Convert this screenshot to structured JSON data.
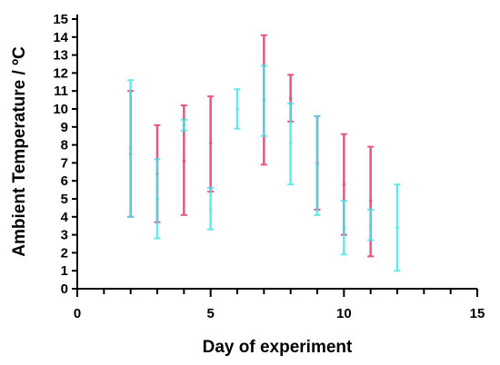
{
  "chart_data": {
    "type": "scatter",
    "xlabel": "Day of experiment",
    "ylabel": "Ambient Temperature / ºC",
    "xlim": [
      0,
      15
    ],
    "ylim": [
      0,
      15
    ],
    "x_ticks": [
      "0",
      "5",
      "10",
      "15"
    ],
    "y_ticks": [
      "0",
      "1",
      "2",
      "3",
      "4",
      "5",
      "6",
      "7",
      "8",
      "9",
      "10",
      "11",
      "12",
      "13",
      "14",
      "15"
    ],
    "grid": false,
    "legend": "none",
    "series": [
      {
        "color": "#e0306e",
        "points": [
          {
            "x": 2,
            "low": 4.0,
            "mid": 7.5,
            "high": 11.0
          },
          {
            "x": 3,
            "low": 3.7,
            "mid": 6.4,
            "high": 9.1
          },
          {
            "x": 4,
            "low": 4.1,
            "mid": 7.1,
            "high": 10.2
          },
          {
            "x": 5,
            "low": 5.4,
            "mid": 8.1,
            "high": 10.7
          },
          {
            "x": 7,
            "low": 6.9,
            "mid": 10.5,
            "high": 14.1
          },
          {
            "x": 8,
            "low": 9.3,
            "mid": 10.6,
            "high": 11.9
          },
          {
            "x": 9,
            "low": 4.4,
            "mid": 7.0,
            "high": 9.6
          },
          {
            "x": 10,
            "low": 3.0,
            "mid": 5.8,
            "high": 8.6
          },
          {
            "x": 11,
            "low": 1.8,
            "mid": 4.9,
            "high": 7.9
          }
        ]
      },
      {
        "color": "#3ee6e6",
        "points": [
          {
            "x": 2,
            "low": 4.0,
            "mid": 7.8,
            "high": 11.6
          },
          {
            "x": 3,
            "low": 2.8,
            "mid": 5.0,
            "high": 7.2
          },
          {
            "x": 4,
            "low": 8.8,
            "mid": 9.1,
            "high": 9.4
          },
          {
            "x": 5,
            "low": 3.3,
            "mid": 4.4,
            "high": 5.6
          },
          {
            "x": 6,
            "low": 8.9,
            "mid": 10.0,
            "high": 11.1
          },
          {
            "x": 7,
            "low": 8.5,
            "mid": 10.5,
            "high": 12.4
          },
          {
            "x": 8,
            "low": 5.8,
            "mid": 8.1,
            "high": 10.3
          },
          {
            "x": 9,
            "low": 4.1,
            "mid": 6.9,
            "high": 9.6
          },
          {
            "x": 10,
            "low": 1.9,
            "mid": 3.4,
            "high": 4.9
          },
          {
            "x": 11,
            "low": 2.7,
            "mid": 3.5,
            "high": 4.4
          },
          {
            "x": 12,
            "low": 1.0,
            "mid": 3.4,
            "high": 5.8
          }
        ]
      }
    ]
  }
}
